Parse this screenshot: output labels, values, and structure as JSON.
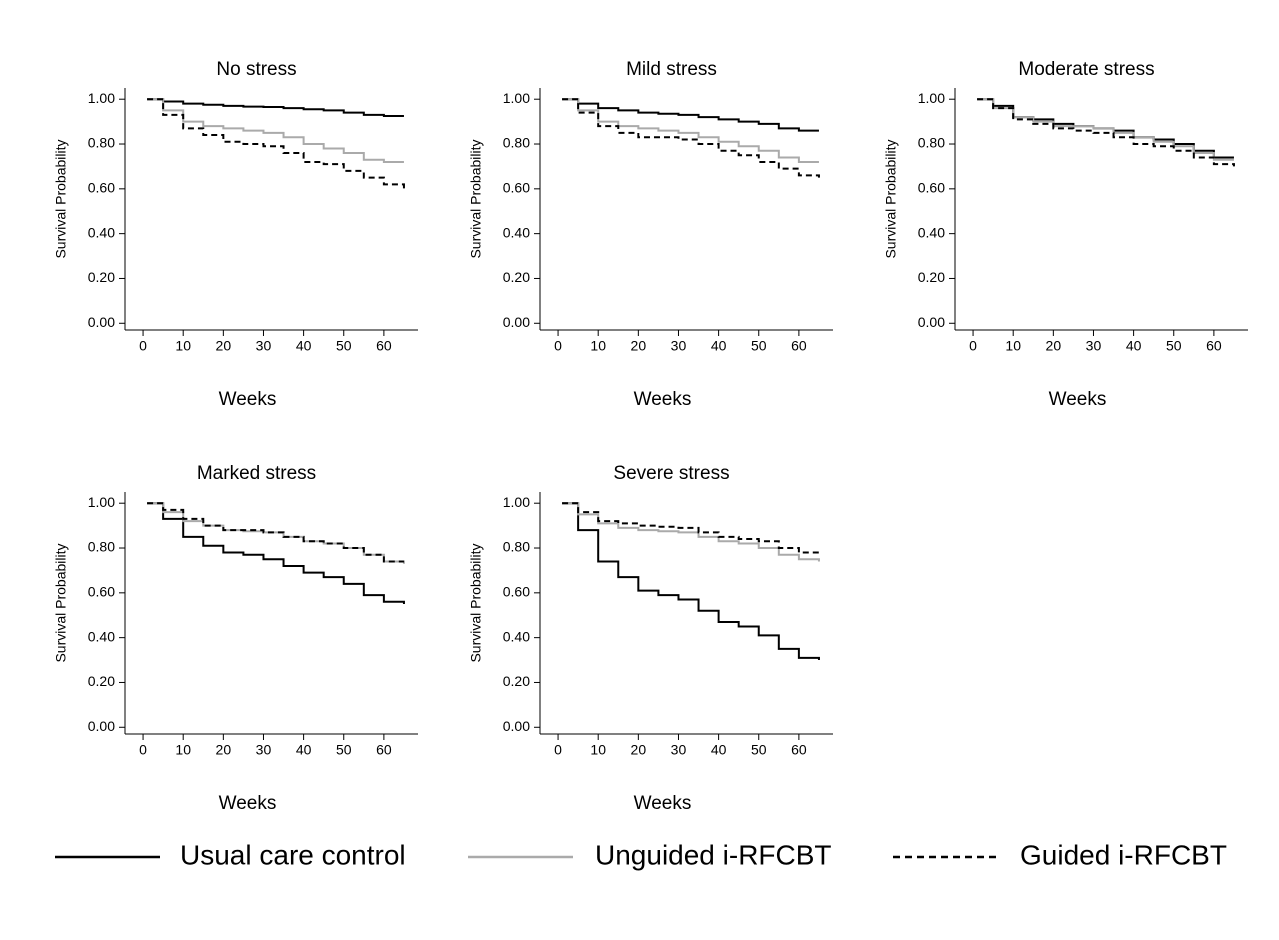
{
  "chart_data": [
    {
      "type": "line",
      "drawstyle": "steps-post",
      "title": "No stress",
      "xlabel": "Weeks",
      "ylabel": "Survival Probability",
      "x": [
        1,
        5,
        10,
        15,
        20,
        25,
        30,
        35,
        40,
        45,
        50,
        55,
        60,
        65
      ],
      "series": [
        {
          "name": "Usual care control",
          "color": "#000000",
          "linestyle": "solid",
          "values": [
            1,
            0.99,
            0.98,
            0.975,
            0.97,
            0.967,
            0.965,
            0.96,
            0.955,
            0.95,
            0.94,
            0.93,
            0.925,
            0.925
          ]
        },
        {
          "name": "Unguided i-RFCBT",
          "color": "#aaaaaa",
          "linestyle": "solid",
          "values": [
            1,
            0.95,
            0.9,
            0.88,
            0.87,
            0.86,
            0.85,
            0.83,
            0.8,
            0.78,
            0.76,
            0.73,
            0.72,
            0.72
          ]
        },
        {
          "name": "Guided i-RFCBT",
          "color": "#000000",
          "linestyle": "dashed",
          "values": [
            1,
            0.93,
            0.87,
            0.84,
            0.81,
            0.8,
            0.79,
            0.76,
            0.72,
            0.71,
            0.68,
            0.65,
            0.62,
            0.6
          ]
        }
      ],
      "xlim": [
        -4.5,
        68.5
      ],
      "ylim": [
        -0.03,
        1.05
      ],
      "xticks": [
        0,
        10,
        20,
        30,
        40,
        50,
        60
      ],
      "yticks": [
        {
          "value": 0,
          "label": "0.00"
        },
        {
          "value": 0.2,
          "label": "0.20"
        },
        {
          "value": 0.4,
          "label": "0.40"
        },
        {
          "value": 0.6,
          "label": "0.60"
        },
        {
          "value": 0.8,
          "label": "0.80"
        },
        {
          "value": 1,
          "label": "1.00"
        }
      ]
    },
    {
      "type": "line",
      "drawstyle": "steps-post",
      "title": "Mild stress",
      "xlabel": "Weeks",
      "ylabel": "Survival Probability",
      "x": [
        1,
        5,
        10,
        15,
        20,
        25,
        30,
        35,
        40,
        45,
        50,
        55,
        60,
        65
      ],
      "series": [
        {
          "name": "Usual care control",
          "color": "#000000",
          "linestyle": "solid",
          "values": [
            1,
            0.98,
            0.96,
            0.95,
            0.94,
            0.935,
            0.93,
            0.92,
            0.91,
            0.9,
            0.89,
            0.87,
            0.86,
            0.86
          ]
        },
        {
          "name": "Unguided i-RFCBT",
          "color": "#aaaaaa",
          "linestyle": "solid",
          "values": [
            1,
            0.95,
            0.9,
            0.88,
            0.87,
            0.86,
            0.85,
            0.83,
            0.81,
            0.79,
            0.77,
            0.74,
            0.72,
            0.72
          ]
        },
        {
          "name": "Guided i-RFCBT",
          "color": "#000000",
          "linestyle": "dashed",
          "values": [
            1,
            0.94,
            0.88,
            0.85,
            0.83,
            0.83,
            0.82,
            0.8,
            0.77,
            0.75,
            0.72,
            0.69,
            0.66,
            0.65
          ]
        }
      ],
      "xlim": [
        -4.5,
        68.5
      ],
      "ylim": [
        -0.03,
        1.05
      ],
      "xticks": [
        0,
        10,
        20,
        30,
        40,
        50,
        60
      ],
      "yticks": [
        {
          "value": 0,
          "label": "0.00"
        },
        {
          "value": 0.2,
          "label": "0.20"
        },
        {
          "value": 0.4,
          "label": "0.40"
        },
        {
          "value": 0.6,
          "label": "0.60"
        },
        {
          "value": 0.8,
          "label": "0.80"
        },
        {
          "value": 1,
          "label": "1.00"
        }
      ]
    },
    {
      "type": "line",
      "drawstyle": "steps-post",
      "title": "Moderate stress",
      "xlabel": "Weeks",
      "ylabel": "Survival Probability",
      "x": [
        1,
        5,
        10,
        15,
        20,
        25,
        30,
        35,
        40,
        45,
        50,
        55,
        60,
        65
      ],
      "series": [
        {
          "name": "Usual care control",
          "color": "#000000",
          "linestyle": "solid",
          "values": [
            1,
            0.97,
            0.92,
            0.91,
            0.89,
            0.88,
            0.87,
            0.86,
            0.83,
            0.82,
            0.8,
            0.77,
            0.74,
            0.74
          ]
        },
        {
          "name": "Unguided i-RFCBT",
          "color": "#aaaaaa",
          "linestyle": "solid",
          "values": [
            1,
            0.96,
            0.92,
            0.9,
            0.88,
            0.88,
            0.87,
            0.85,
            0.83,
            0.81,
            0.79,
            0.76,
            0.73,
            0.73
          ]
        },
        {
          "name": "Guided i-RFCBT",
          "color": "#000000",
          "linestyle": "dashed",
          "values": [
            1,
            0.96,
            0.91,
            0.89,
            0.87,
            0.86,
            0.85,
            0.83,
            0.8,
            0.79,
            0.77,
            0.74,
            0.71,
            0.7
          ]
        }
      ],
      "xlim": [
        -4.5,
        68.5
      ],
      "ylim": [
        -0.03,
        1.05
      ],
      "xticks": [
        0,
        10,
        20,
        30,
        40,
        50,
        60
      ],
      "yticks": [
        {
          "value": 0,
          "label": "0.00"
        },
        {
          "value": 0.2,
          "label": "0.20"
        },
        {
          "value": 0.4,
          "label": "0.40"
        },
        {
          "value": 0.6,
          "label": "0.60"
        },
        {
          "value": 0.8,
          "label": "0.80"
        },
        {
          "value": 1,
          "label": "1.00"
        }
      ]
    },
    {
      "type": "line",
      "drawstyle": "steps-post",
      "title": "Marked stress",
      "xlabel": "Weeks",
      "ylabel": "Survival Probability",
      "x": [
        1,
        5,
        10,
        15,
        20,
        25,
        30,
        35,
        40,
        45,
        50,
        55,
        60,
        65
      ],
      "series": [
        {
          "name": "Usual care control",
          "color": "#000000",
          "linestyle": "solid",
          "values": [
            1,
            0.93,
            0.85,
            0.81,
            0.78,
            0.77,
            0.75,
            0.72,
            0.69,
            0.67,
            0.64,
            0.59,
            0.56,
            0.55
          ]
        },
        {
          "name": "Unguided i-RFCBT",
          "color": "#aaaaaa",
          "linestyle": "solid",
          "values": [
            1,
            0.96,
            0.92,
            0.9,
            0.88,
            0.875,
            0.87,
            0.85,
            0.83,
            0.82,
            0.8,
            0.77,
            0.74,
            0.73
          ]
        },
        {
          "name": "Guided i-RFCBT",
          "color": "#000000",
          "linestyle": "dashed",
          "values": [
            1,
            0.97,
            0.93,
            0.9,
            0.88,
            0.88,
            0.87,
            0.85,
            0.83,
            0.82,
            0.8,
            0.77,
            0.74,
            0.74
          ]
        }
      ],
      "xlim": [
        -4.5,
        68.5
      ],
      "ylim": [
        -0.03,
        1.05
      ],
      "xticks": [
        0,
        10,
        20,
        30,
        40,
        50,
        60
      ],
      "yticks": [
        {
          "value": 0,
          "label": "0.00"
        },
        {
          "value": 0.2,
          "label": "0.20"
        },
        {
          "value": 0.4,
          "label": "0.40"
        },
        {
          "value": 0.6,
          "label": "0.60"
        },
        {
          "value": 0.8,
          "label": "0.80"
        },
        {
          "value": 1,
          "label": "1.00"
        }
      ]
    },
    {
      "type": "line",
      "drawstyle": "steps-post",
      "title": "Severe stress",
      "xlabel": "Weeks",
      "ylabel": "Survival Probability",
      "x": [
        1,
        5,
        10,
        15,
        20,
        25,
        30,
        35,
        40,
        45,
        50,
        55,
        60,
        65
      ],
      "series": [
        {
          "name": "Usual care control",
          "color": "#000000",
          "linestyle": "solid",
          "values": [
            1,
            0.88,
            0.74,
            0.67,
            0.61,
            0.59,
            0.57,
            0.52,
            0.47,
            0.45,
            0.41,
            0.35,
            0.31,
            0.3
          ]
        },
        {
          "name": "Unguided i-RFCBT",
          "color": "#aaaaaa",
          "linestyle": "solid",
          "values": [
            1,
            0.95,
            0.91,
            0.89,
            0.88,
            0.875,
            0.87,
            0.85,
            0.83,
            0.82,
            0.8,
            0.77,
            0.75,
            0.74
          ]
        },
        {
          "name": "Guided i-RFCBT",
          "color": "#000000",
          "linestyle": "dashed",
          "values": [
            1,
            0.96,
            0.92,
            0.91,
            0.9,
            0.895,
            0.89,
            0.87,
            0.85,
            0.84,
            0.83,
            0.8,
            0.78,
            0.77
          ]
        }
      ],
      "xlim": [
        -4.5,
        68.5
      ],
      "ylim": [
        -0.03,
        1.05
      ],
      "xticks": [
        0,
        10,
        20,
        30,
        40,
        50,
        60
      ],
      "yticks": [
        {
          "value": 0,
          "label": "0.00"
        },
        {
          "value": 0.2,
          "label": "0.20"
        },
        {
          "value": 0.4,
          "label": "0.40"
        },
        {
          "value": 0.6,
          "label": "0.60"
        },
        {
          "value": 0.8,
          "label": "0.80"
        },
        {
          "value": 1,
          "label": "1.00"
        }
      ]
    }
  ]
}
